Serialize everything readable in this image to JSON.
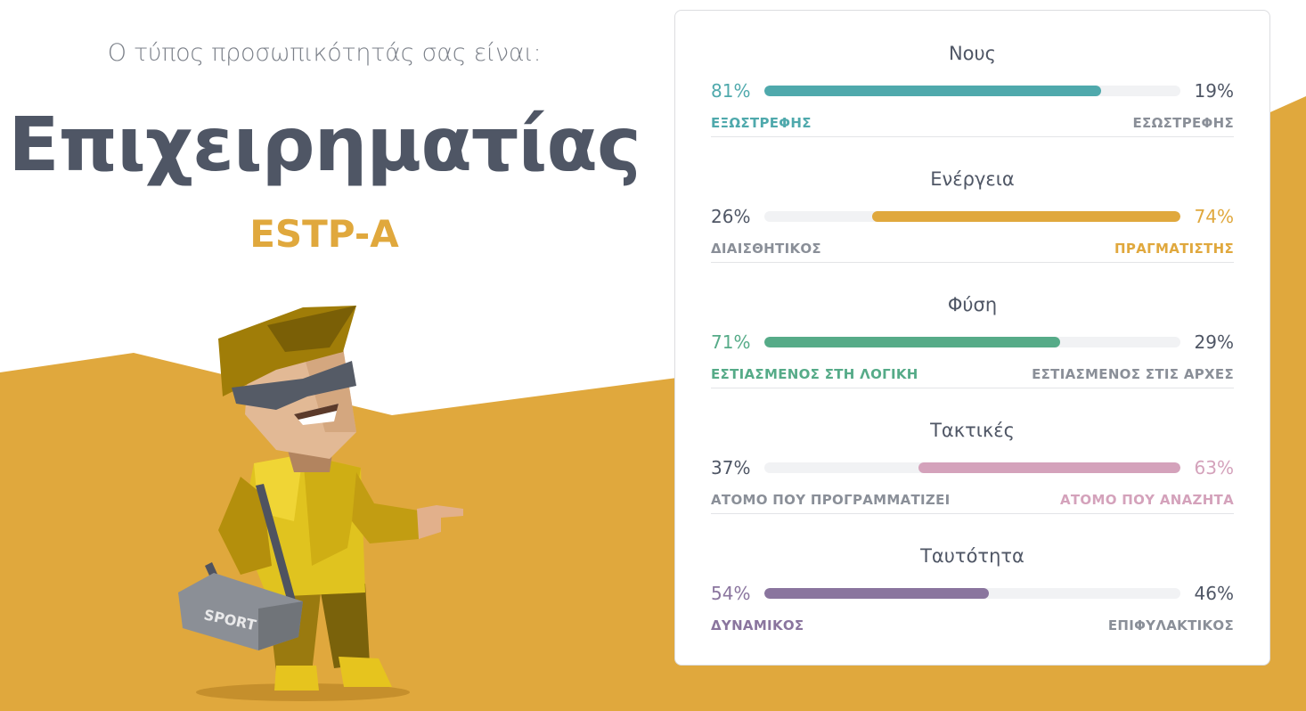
{
  "intro": "Ο τύπος προσωπικότητάς σας είναι:",
  "type_name": "Επιχειρηματίας",
  "type_code": "ESTP-A",
  "bag_text": "SPORT",
  "colors": {
    "background_shape": "#e0a83d",
    "mind": "#4fa9ac",
    "energy": "#e0a83d",
    "nature": "#56ab88",
    "tactics": "#d4a2bb",
    "identity": "#8a759e"
  },
  "traits": [
    {
      "title": "Νους",
      "left_pct": "81%",
      "right_pct": "19%",
      "left_label": "ΕΞΩΣΤΡΕΦΗΣ",
      "right_label": "ΕΣΩΣΤΡΕΦΗΣ",
      "dominant": "left",
      "value": 0.81,
      "color": "#4fa9ac"
    },
    {
      "title": "Ενέργεια",
      "left_pct": "26%",
      "right_pct": "74%",
      "left_label": "ΔΙΑΙΣΘΗΤΙΚΟΣ",
      "right_label": "ΠΡΑΓΜΑΤΙΣΤΗΣ",
      "dominant": "right",
      "value": 0.74,
      "color": "#e0a83d"
    },
    {
      "title": "Φύση",
      "left_pct": "71%",
      "right_pct": "29%",
      "left_label": "ΕΣΤΙΑΣΜΕΝΟΣ ΣΤΗ ΛΟΓΙΚΗ",
      "right_label": "ΕΣΤΙΑΣΜΕΝΟΣ ΣΤΙΣ ΑΡΧΕΣ",
      "dominant": "left",
      "value": 0.71,
      "color": "#56ab88"
    },
    {
      "title": "Τακτικές",
      "left_pct": "37%",
      "right_pct": "63%",
      "left_label": "ΑΤΟΜΟ ΠΟΥ ΠΡΟΓΡΑΜΜΑΤΙΖΕΙ",
      "right_label": "ΑΤΟΜΟ ΠΟΥ ΑΝΑΖΗΤΑ",
      "dominant": "right",
      "value": 0.63,
      "color": "#d4a2bb"
    },
    {
      "title": "Ταυτότητα",
      "left_pct": "54%",
      "right_pct": "46%",
      "left_label": "ΔΥΝΑΜΙΚΟΣ",
      "right_label": "ΕΠΙΦΥΛΑΚΤΙΚΟΣ",
      "dominant": "left",
      "value": 0.54,
      "color": "#8a759e"
    }
  ]
}
